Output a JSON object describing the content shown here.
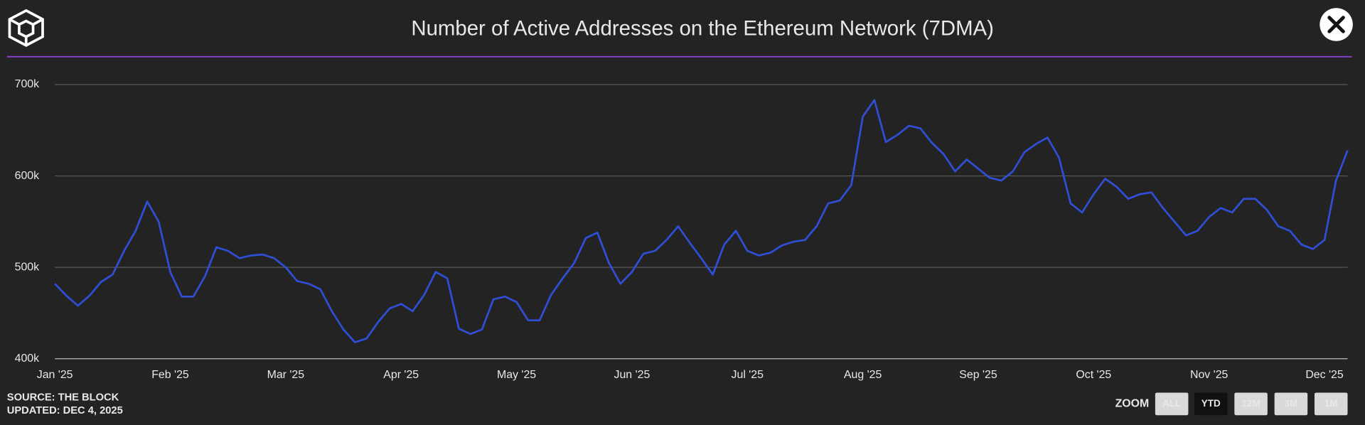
{
  "chart_data": {
    "type": "line",
    "title": "Number of Active Addresses on the Ethereum Network (7DMA)",
    "categories": [
      "Jan '25",
      null,
      null,
      null,
      null,
      null,
      null,
      null,
      null,
      null,
      "Feb '25",
      null,
      null,
      null,
      null,
      null,
      null,
      null,
      null,
      null,
      "Mar '25",
      null,
      null,
      null,
      null,
      null,
      null,
      null,
      null,
      null,
      "Apr '25",
      null,
      null,
      null,
      null,
      null,
      null,
      null,
      null,
      null,
      "May '25",
      null,
      null,
      null,
      null,
      null,
      null,
      null,
      null,
      null,
      "Jun '25",
      null,
      null,
      null,
      null,
      null,
      null,
      null,
      null,
      null,
      "Jul '25",
      null,
      null,
      null,
      null,
      null,
      null,
      null,
      null,
      null,
      "Aug '25",
      null,
      null,
      null,
      null,
      null,
      null,
      null,
      null,
      null,
      "Sep '25",
      null,
      null,
      null,
      null,
      null,
      null,
      null,
      null,
      null,
      "Oct '25",
      null,
      null,
      null,
      null,
      null,
      null,
      null,
      null,
      null,
      "Nov '25",
      null,
      null,
      null,
      null,
      null,
      null,
      null,
      null,
      null,
      "Dec '25",
      null,
      null
    ],
    "values": [
      482000,
      469000,
      458000,
      469000,
      484000,
      492000,
      518000,
      540000,
      572000,
      550000,
      495000,
      468000,
      468000,
      490000,
      522000,
      518000,
      510000,
      513000,
      514000,
      510000,
      500000,
      485000,
      482000,
      476000,
      452000,
      432000,
      418000,
      422000,
      440000,
      455000,
      460000,
      452000,
      470000,
      495000,
      488000,
      433000,
      427000,
      432000,
      465000,
      468000,
      462000,
      442000,
      442000,
      470000,
      488000,
      505000,
      532000,
      538000,
      505000,
      482000,
      495000,
      515000,
      518000,
      530000,
      545000,
      527000,
      510000,
      492000,
      525000,
      540000,
      518000,
      513000,
      516000,
      524000,
      528000,
      530000,
      545000,
      570000,
      573000,
      590000,
      665000,
      683000,
      637000,
      645000,
      655000,
      652000,
      636000,
      624000,
      605000,
      618000,
      608000,
      598000,
      595000,
      605000,
      626000,
      635000,
      642000,
      620000,
      570000,
      560000,
      580000,
      597000,
      588000,
      575000,
      580000,
      582000,
      565000,
      550000,
      535000,
      540000,
      555000,
      565000,
      560000,
      575000,
      575000,
      563000,
      545000,
      540000,
      525000,
      520000,
      530000,
      595000,
      628000
    ],
    "color": "#2f4fd6",
    "ylim": [
      400000,
      700000
    ],
    "yticks": [
      {
        "value": 400000,
        "label": "400k"
      },
      {
        "value": 500000,
        "label": "500k"
      },
      {
        "value": 600000,
        "label": "600k"
      },
      {
        "value": 700000,
        "label": "700k"
      }
    ],
    "grid": true
  },
  "footer": {
    "source": "SOURCE: THE BLOCK",
    "updated": "UPDATED: DEC 4, 2025"
  },
  "zoom": {
    "label": "ZOOM",
    "buttons": [
      "ALL",
      "YTD",
      "12M",
      "3M",
      "1M"
    ]
  }
}
